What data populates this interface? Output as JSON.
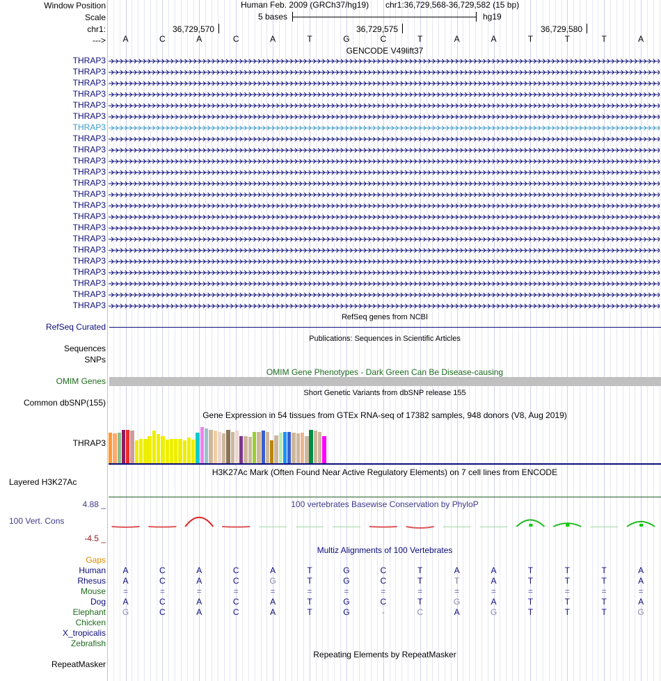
{
  "ruler": {
    "window_position_label": "Window Position",
    "scale_label": "Scale",
    "chrom_label": "chr1:",
    "strand_label": "--->",
    "assembly_title": "Human Feb. 2009 (GRCh37/hg19)",
    "position": "chr1:36,729,568-36,729,582 (15 bp)",
    "scale_text": "5 bases",
    "scale_db": "hg19",
    "ticks": [
      "36,729,570",
      "36,729,575",
      "36,729,580"
    ],
    "bases": [
      "A",
      "C",
      "A",
      "C",
      "A",
      "T",
      "G",
      "C",
      "T",
      "A",
      "A",
      "T",
      "T",
      "T",
      "A"
    ]
  },
  "gencode": {
    "title": "GENCODE V49lift37",
    "gene_name": "THRAP3",
    "transcript_count": 23,
    "highlight_index": 6,
    "color": "#0c0c78",
    "highlight_color": "#3a9ac9"
  },
  "refseq": {
    "label": "RefSeq Curated",
    "title": "RefSeq genes from NCBI",
    "color": "#0c0c78"
  },
  "publications": {
    "title": "Publications: Sequences in Scientific Articles",
    "labels": [
      "Sequences",
      "SNPs"
    ]
  },
  "omim": {
    "title": "OMIM Gene Phenotypes - Dark Green Can Be Disease-causing",
    "label": "OMIM Genes",
    "color": "#1d6b1d",
    "bar_color": "#c0c0c0"
  },
  "dbsnp": {
    "title": "Short Genetic Variants from dbSNP release 155",
    "label": "Common dbSNP(155)"
  },
  "gtex": {
    "title": "Gene Expression in 54 tissues from GTEx RNA-seq of 17382 samples, 948 donors (V8, Aug 2019)",
    "label": "THRAP3",
    "bars": [
      {
        "color": "#ff9933",
        "value": 0.7
      },
      {
        "color": "#ffaa66",
        "value": 0.68
      },
      {
        "color": "#8fbc8f",
        "value": 0.7
      },
      {
        "color": "#8b1c62",
        "value": 0.76
      },
      {
        "color": "#ee2c2c",
        "value": 0.76
      },
      {
        "color": "#cd9b9b",
        "value": 0.74
      },
      {
        "color": "#eeee00",
        "value": 0.53
      },
      {
        "color": "#eeee00",
        "value": 0.56
      },
      {
        "color": "#eeee00",
        "value": 0.55
      },
      {
        "color": "#eeee00",
        "value": 0.62
      },
      {
        "color": "#eeee00",
        "value": 0.74
      },
      {
        "color": "#eeee00",
        "value": 0.66
      },
      {
        "color": "#eeee00",
        "value": 0.62
      },
      {
        "color": "#eeee00",
        "value": 0.54
      },
      {
        "color": "#eeee00",
        "value": 0.56
      },
      {
        "color": "#eeee00",
        "value": 0.55
      },
      {
        "color": "#eeee00",
        "value": 0.56
      },
      {
        "color": "#eeee00",
        "value": 0.53
      },
      {
        "color": "#eeee00",
        "value": 0.58
      },
      {
        "color": "#eeee00",
        "value": 0.54
      },
      {
        "color": "#00cdcd",
        "value": 0.7
      },
      {
        "color": "#ee82ee",
        "value": 0.82
      },
      {
        "color": "#9ac0cd",
        "value": 0.8
      },
      {
        "color": "#cdb79e",
        "value": 0.76
      },
      {
        "color": "#eecfa1",
        "value": 0.74
      },
      {
        "color": "#eed5d2",
        "value": 0.72
      },
      {
        "color": "#cdb79e",
        "value": 0.68
      },
      {
        "color": "#8b7355",
        "value": 0.76
      },
      {
        "color": "#cdb79e",
        "value": 0.72
      },
      {
        "color": "#eed5d2",
        "value": 0.74
      },
      {
        "color": "#7a378b",
        "value": 0.62
      },
      {
        "color": "#cdb79e",
        "value": 0.62
      },
      {
        "color": "#cdb79e",
        "value": 0.6
      },
      {
        "color": "#9acd32",
        "value": 0.72
      },
      {
        "color": "#cdb79e",
        "value": 0.72
      },
      {
        "color": "#3a5fcd",
        "value": 0.74
      },
      {
        "color": "#cdb79e",
        "value": 0.72
      },
      {
        "color": "#b8860b",
        "value": 0.52
      },
      {
        "color": "#cdb79e",
        "value": 0.64
      },
      {
        "color": "#b4eeb4",
        "value": 0.7
      },
      {
        "color": "#1e90ff",
        "value": 0.72
      },
      {
        "color": "#3a5fcd",
        "value": 0.72
      },
      {
        "color": "#cdb79e",
        "value": 0.7
      },
      {
        "color": "#cdb79e",
        "value": 0.68
      },
      {
        "color": "#eeb48c",
        "value": 0.7
      },
      {
        "color": "#cdb79e",
        "value": 0.62
      },
      {
        "color": "#008b45",
        "value": 0.76
      },
      {
        "color": "#cdb79e",
        "value": 0.74
      },
      {
        "color": "#cdb79e",
        "value": 0.72
      },
      {
        "color": "#ff00ff",
        "value": 0.62
      }
    ]
  },
  "h3k27ac": {
    "title": "H3K27Ac Mark (Often Found Near Active Regulatory Elements) on 7 cell lines from ENCODE",
    "label": "Layered H3K27Ac",
    "line_color": "#1f5f1f"
  },
  "phylop": {
    "title": "100 vertebrates Basewise Conservation by PhyloP",
    "label": "100 Vert. Cons",
    "max_label": "4.88 _",
    "min_label": "-4.5 _",
    "title_color": "#3c3c8c",
    "label_color": "#3c3c8c",
    "max_color": "#3c3c8c",
    "min_color": "#8b1a1a",
    "scores": [
      -0.4,
      -0.3,
      2.2,
      -0.3,
      0.0,
      0.0,
      0.0,
      -0.3,
      -0.9,
      0.0,
      0.0,
      1.6,
      0.8,
      0.0,
      1.2
    ]
  },
  "multiz": {
    "title": "Multiz Alignments of 100 Vertebrates",
    "title_color": "#0c0c78",
    "gaps_label": "Gaps",
    "gaps_color": "#e08a00",
    "species": [
      {
        "name": "Human",
        "color": "#0c0c78",
        "bases": [
          "A",
          "C",
          "A",
          "C",
          "A",
          "T",
          "G",
          "C",
          "T",
          "A",
          "A",
          "T",
          "T",
          "T",
          "A"
        ]
      },
      {
        "name": "Rhesus",
        "color": "#0c0c78",
        "bases": [
          "A",
          "C",
          "A",
          "C",
          "G",
          "T",
          "G",
          "C",
          "T",
          "T",
          "A",
          "T",
          "T",
          "T",
          "A"
        ]
      },
      {
        "name": "Mouse",
        "color": "#1d6b1d",
        "bases": [
          "=",
          "=",
          "=",
          "=",
          "=",
          "=",
          "=",
          "=",
          "=",
          "=",
          "=",
          "=",
          "=",
          "=",
          "="
        ]
      },
      {
        "name": "Dog",
        "color": "#0c0c78",
        "bases": [
          "A",
          "C",
          "A",
          "C",
          "A",
          "T",
          "G",
          "C",
          "T",
          "G",
          "A",
          "T",
          "T",
          "T",
          "A"
        ]
      },
      {
        "name": "Elephant",
        "color": "#1d6b1d",
        "bases": [
          "G",
          "C",
          "A",
          "C",
          "A",
          "T",
          "G",
          "-",
          "C",
          "A",
          "G",
          "T",
          "T",
          "T",
          "G"
        ]
      },
      {
        "name": "Chicken",
        "color": "#1d6b1d",
        "bases": []
      },
      {
        "name": "X_tropicalis",
        "color": "#0c0c78",
        "bases": []
      },
      {
        "name": "Zebrafish",
        "color": "#1d6b1d",
        "bases": []
      }
    ]
  },
  "repeatmasker": {
    "title": "Repeating Elements by RepeatMasker",
    "label": "RepeatMasker"
  }
}
